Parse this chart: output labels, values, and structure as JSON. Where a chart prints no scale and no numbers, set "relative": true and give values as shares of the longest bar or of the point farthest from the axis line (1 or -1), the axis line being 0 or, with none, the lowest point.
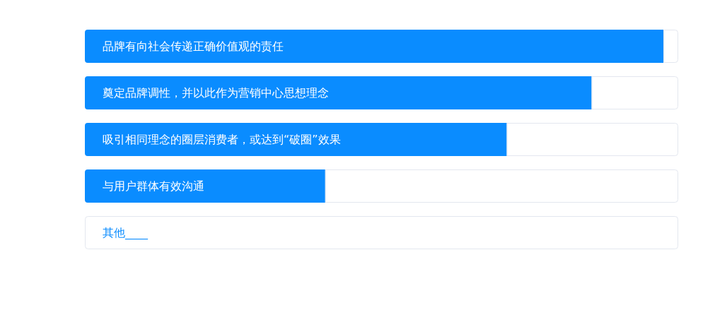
{
  "chart_data": {
    "type": "bar",
    "orientation": "horizontal",
    "relative": true,
    "stacked": true,
    "categories": [
      "品牌有向社会传递正确价值观的责任",
      "奠定品牌调性，并以此作为营销中心思想理念",
      "吸引相同理念的圈层消费者，或达到“破圈”效果",
      "与用户群体有效沟通",
      "其他____"
    ],
    "series": [
      {
        "color": "#0a8cff",
        "values": [
          0.975,
          0.854,
          0.711,
          0.405,
          0
        ]
      },
      {
        "color": "#ffffff",
        "values": [
          0.025,
          0.146,
          0.289,
          0.595,
          1
        ]
      }
    ]
  }
}
